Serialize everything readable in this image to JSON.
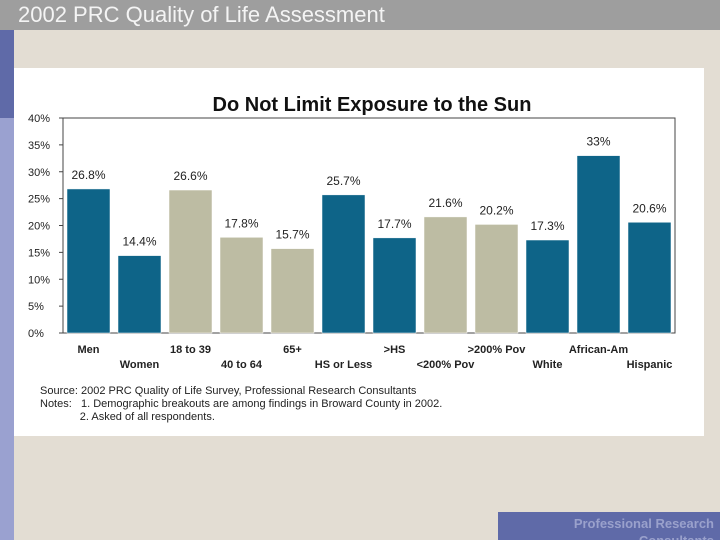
{
  "slide": {
    "title": "2002 PRC Quality of Life Assessment",
    "footer_brand": "Professional Research Consultants"
  },
  "colors": {
    "title_bar": "#9e9e9e",
    "background": "#e3ddd3",
    "accent_blue": "#0e6488",
    "accent_khaki": "#bdbca3",
    "left_strip": "#9aa1d0",
    "left_strip_dark": "#5f6aa8"
  },
  "chart_data": {
    "type": "bar",
    "title": "Do Not Limit Exposure to the Sun",
    "categories": [
      "Men",
      "Women",
      "18 to 39",
      "40 to 64",
      "65+",
      "HS or Less",
      ">HS",
      "<200% Pov",
      ">200% Pov",
      "White",
      "African-Am",
      "Hispanic"
    ],
    "values": [
      26.8,
      14.4,
      26.6,
      17.8,
      15.7,
      25.7,
      17.7,
      21.6,
      20.2,
      17.3,
      33,
      20.6
    ],
    "value_labels": [
      "26.8%",
      "14.4%",
      "26.6%",
      "17.8%",
      "15.7%",
      "25.7%",
      "17.7%",
      "21.6%",
      "20.2%",
      "17.3%",
      "33%",
      "20.6%"
    ],
    "bar_colors": [
      "#0e6488",
      "#0e6488",
      "#bdbca3",
      "#bdbca3",
      "#bdbca3",
      "#0e6488",
      "#0e6488",
      "#bdbca3",
      "#bdbca3",
      "#0e6488",
      "#0e6488",
      "#0e6488"
    ],
    "ylim": [
      0,
      40
    ],
    "yticks": [
      "0%",
      "5%",
      "10%",
      "15%",
      "20%",
      "25%",
      "30%",
      "35%",
      "40%"
    ],
    "grid": false,
    "notes": [
      "Source: 2002 PRC Quality of Life Survey, Professional Research Consultants",
      "Notes:   1. Demographic breakouts are among findings in Broward County in 2002.",
      "             2. Asked of all respondents."
    ]
  }
}
